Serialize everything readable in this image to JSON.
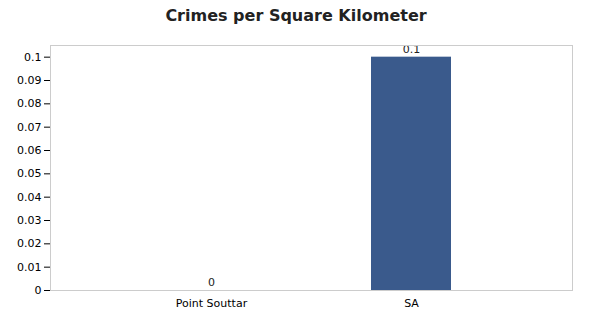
{
  "chart_data": {
    "type": "bar",
    "title": "Crimes per Square Kilometer",
    "categories": [
      "Point Souttar",
      "SA"
    ],
    "values": [
      0.0,
      0.1
    ],
    "color": "#3a5a8c",
    "ylim": [
      0,
      0.105
    ],
    "yticks": [
      0,
      0.01,
      0.02,
      0.03,
      0.04,
      0.05,
      0.06,
      0.07,
      0.08,
      0.09,
      0.1
    ],
    "grid": false,
    "data_labels": true
  }
}
